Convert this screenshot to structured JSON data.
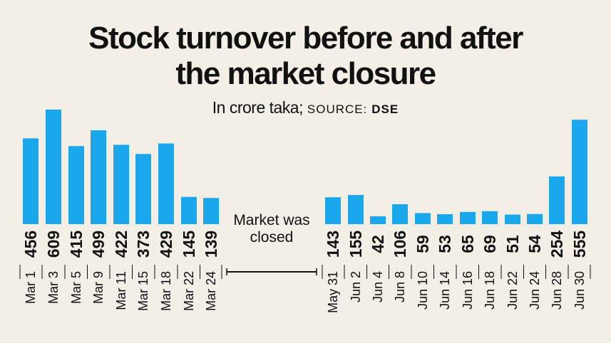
{
  "title_line1": "Stock turnover before and after",
  "title_line2": "the market closure",
  "subtitle_unit": "In crore taka;",
  "subtitle_source_label": "SOURCE:",
  "subtitle_source": "DSE",
  "annotation_line1": "Market was",
  "annotation_line2": "closed",
  "colors": {
    "bar": "#1aa7ec",
    "background": "#f3efe6",
    "text": "#111111"
  },
  "chart_data": {
    "type": "bar",
    "title": "Stock turnover before and after the market closure",
    "ylabel": "In crore taka",
    "categories": [
      "Mar 1",
      "Mar 3",
      "Mar 5",
      "Mar 9",
      "Mar 11",
      "Mar 15",
      "Mar 18",
      "Mar 22",
      "Mar 24",
      "May 31",
      "Jun 2",
      "Jun 4",
      "Jun 8",
      "Jun 10",
      "Jun 14",
      "Jun 16",
      "Jun 18",
      "Jun 22",
      "Jun 24",
      "Jun 28",
      "Jun 30"
    ],
    "values": [
      456,
      609,
      415,
      499,
      422,
      373,
      429,
      145,
      139,
      143,
      155,
      42,
      106,
      59,
      53,
      65,
      69,
      51,
      54,
      254,
      555
    ],
    "ylim": [
      0,
      609
    ],
    "grid": false,
    "data_labels": true
  }
}
